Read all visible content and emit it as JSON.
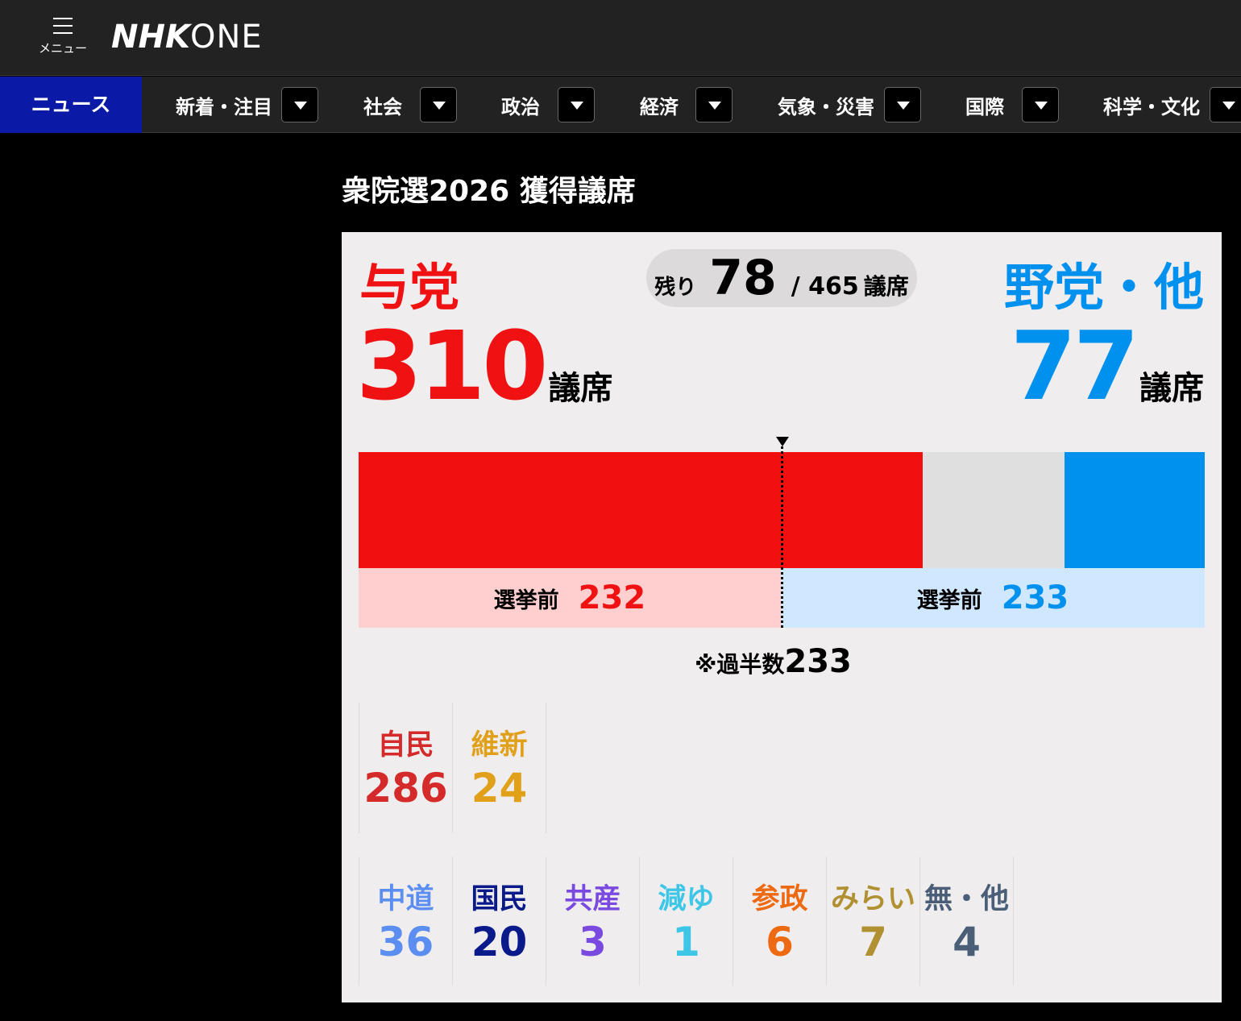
{
  "header": {
    "menu_label": "メニュー",
    "logo_nhk": "NHK",
    "logo_one": "ONE"
  },
  "nav": {
    "news": "ニュース",
    "items": [
      {
        "label": "新着・注目"
      },
      {
        "label": "社会"
      },
      {
        "label": "政治"
      },
      {
        "label": "経済"
      },
      {
        "label": "気象・災害"
      },
      {
        "label": "国際"
      },
      {
        "label": "科学・文化"
      }
    ]
  },
  "page": {
    "title": "衆院選2026 獲得議席"
  },
  "summary": {
    "ruling_label": "与党",
    "opposition_label": "野党・他",
    "remaining_label": "残り",
    "remaining_value": "78",
    "total_text": "/ 465",
    "total_unit": "議席",
    "ruling_seats": "310",
    "opposition_seats": "77",
    "seat_unit": "議席",
    "total_seats": 465,
    "ruling_seats_value": 310,
    "opposition_seats_value": 77,
    "previous_label": "選挙前",
    "previous_ruling": "232",
    "previous_opposition": "233",
    "previous_ruling_value": 232,
    "previous_opposition_value": 233,
    "majority_label": "※過半数",
    "majority_value": "233"
  },
  "colors": {
    "ruling": "#f01212",
    "opposition": "#0090ee",
    "undecided": "#dfdfdf",
    "prev_ruling_bg": "#ffcfcf",
    "prev_opposition_bg": "#cfe7ff",
    "nav_active": "#0b1aa6"
  },
  "ruling_parties": [
    {
      "name": "自民",
      "seats": "286",
      "color": "#d42a2a"
    },
    {
      "name": "維新",
      "seats": "24",
      "color": "#e0a01a"
    }
  ],
  "opposition_parties": [
    {
      "name": "中道",
      "seats": "36",
      "color": "#5b8ef0"
    },
    {
      "name": "国民",
      "seats": "20",
      "color": "#0a1a8a"
    },
    {
      "name": "共産",
      "seats": "3",
      "color": "#7a4ae0"
    },
    {
      "name": "減ゆ",
      "seats": "1",
      "color": "#3ec6e6"
    },
    {
      "name": "参政",
      "seats": "6",
      "color": "#ee6a12"
    },
    {
      "name": "みらい",
      "seats": "7",
      "color": "#b09030"
    },
    {
      "name": "無・他",
      "seats": "4",
      "color": "#4a5e78"
    }
  ]
}
